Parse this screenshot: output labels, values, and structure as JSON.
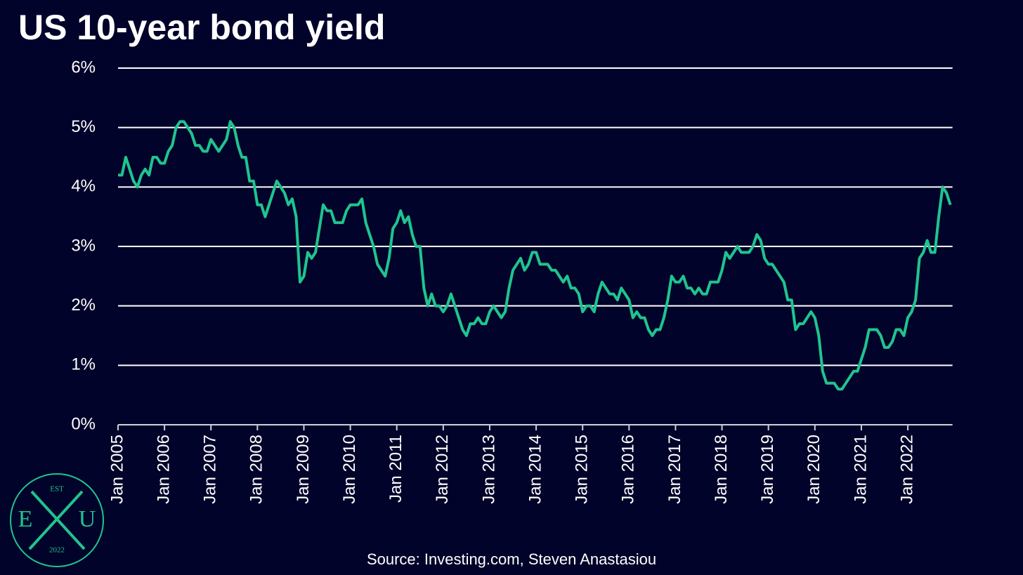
{
  "chart_data": {
    "type": "line",
    "title": "US 10-year bond yield",
    "source": "Source: Investing.com, Steven Anastasiou",
    "color": "#1fc48f",
    "x": [
      "Jan 2005",
      "Feb 2005",
      "Mar 2005",
      "Apr 2005",
      "May 2005",
      "Jun 2005",
      "Jul 2005",
      "Aug 2005",
      "Sep 2005",
      "Oct 2005",
      "Nov 2005",
      "Dec 2005",
      "Jan 2006",
      "Feb 2006",
      "Mar 2006",
      "Apr 2006",
      "May 2006",
      "Jun 2006",
      "Jul 2006",
      "Aug 2006",
      "Sep 2006",
      "Oct 2006",
      "Nov 2006",
      "Dec 2006",
      "Jan 2007",
      "Feb 2007",
      "Mar 2007",
      "Apr 2007",
      "May 2007",
      "Jun 2007",
      "Jul 2007",
      "Aug 2007",
      "Sep 2007",
      "Oct 2007",
      "Nov 2007",
      "Dec 2007",
      "Jan 2008",
      "Feb 2008",
      "Mar 2008",
      "Apr 2008",
      "May 2008",
      "Jun 2008",
      "Jul 2008",
      "Aug 2008",
      "Sep 2008",
      "Oct 2008",
      "Nov 2008",
      "Dec 2008",
      "Jan 2009",
      "Feb 2009",
      "Mar 2009",
      "Apr 2009",
      "May 2009",
      "Jun 2009",
      "Jul 2009",
      "Aug 2009",
      "Sep 2009",
      "Oct 2009",
      "Nov 2009",
      "Dec 2009",
      "Jan 2010",
      "Feb 2010",
      "Mar 2010",
      "Apr 2010",
      "May 2010",
      "Jun 2010",
      "Jul 2010",
      "Aug 2010",
      "Sep 2010",
      "Oct 2010",
      "Nov 2010",
      "Dec 2010",
      "Jan 2011",
      "Feb 2011",
      "Mar 2011",
      "Apr 2011",
      "May 2011",
      "Jun 2011",
      "Jul 2011",
      "Aug 2011",
      "Sep 2011",
      "Oct 2011",
      "Nov 2011",
      "Dec 2011",
      "Jan 2012",
      "Feb 2012",
      "Mar 2012",
      "Apr 2012",
      "May 2012",
      "Jun 2012",
      "Jul 2012",
      "Aug 2012",
      "Sep 2012",
      "Oct 2012",
      "Nov 2012",
      "Dec 2012",
      "Jan 2013",
      "Feb 2013",
      "Mar 2013",
      "Apr 2013",
      "May 2013",
      "Jun 2013",
      "Jul 2013",
      "Aug 2013",
      "Sep 2013",
      "Oct 2013",
      "Nov 2013",
      "Dec 2013",
      "Jan 2014",
      "Feb 2014",
      "Mar 2014",
      "Apr 2014",
      "May 2014",
      "Jun 2014",
      "Jul 2014",
      "Aug 2014",
      "Sep 2014",
      "Oct 2014",
      "Nov 2014",
      "Dec 2014",
      "Jan 2015",
      "Feb 2015",
      "Mar 2015",
      "Apr 2015",
      "May 2015",
      "Jun 2015",
      "Jul 2015",
      "Aug 2015",
      "Sep 2015",
      "Oct 2015",
      "Nov 2015",
      "Dec 2015",
      "Jan 2016",
      "Feb 2016",
      "Mar 2016",
      "Apr 2016",
      "May 2016",
      "Jun 2016",
      "Jul 2016",
      "Aug 2016",
      "Sep 2016",
      "Oct 2016",
      "Nov 2016",
      "Dec 2016",
      "Jan 2017",
      "Feb 2017",
      "Mar 2017",
      "Apr 2017",
      "May 2017",
      "Jun 2017",
      "Jul 2017",
      "Aug 2017",
      "Sep 2017",
      "Oct 2017",
      "Nov 2017",
      "Dec 2017",
      "Jan 2018",
      "Feb 2018",
      "Mar 2018",
      "Apr 2018",
      "May 2018",
      "Jun 2018",
      "Jul 2018",
      "Aug 2018",
      "Sep 2018",
      "Oct 2018",
      "Nov 2018",
      "Dec 2018",
      "Jan 2019",
      "Feb 2019",
      "Mar 2019",
      "Apr 2019",
      "May 2019",
      "Jun 2019",
      "Jul 2019",
      "Aug 2019",
      "Sep 2019",
      "Oct 2019",
      "Nov 2019",
      "Dec 2019",
      "Jan 2020",
      "Feb 2020",
      "Mar 2020",
      "Apr 2020",
      "May 2020",
      "Jun 2020",
      "Jul 2020",
      "Aug 2020",
      "Sep 2020",
      "Oct 2020",
      "Nov 2020",
      "Dec 2020",
      "Jan 2021",
      "Feb 2021",
      "Mar 2021",
      "Apr 2021",
      "May 2021",
      "Jun 2021",
      "Jul 2021",
      "Aug 2021",
      "Sep 2021",
      "Oct 2021",
      "Nov 2021",
      "Dec 2021",
      "Jan 2022",
      "Feb 2022",
      "Mar 2022",
      "Apr 2022",
      "May 2022",
      "Jun 2022",
      "Jul 2022",
      "Aug 2022",
      "Sep 2022",
      "Oct 2022",
      "Nov 2022",
      "Dec 2022"
    ],
    "values": [
      4.2,
      4.2,
      4.5,
      4.3,
      4.1,
      4.0,
      4.2,
      4.3,
      4.2,
      4.5,
      4.5,
      4.4,
      4.4,
      4.6,
      4.7,
      5.0,
      5.1,
      5.1,
      5.0,
      4.9,
      4.7,
      4.7,
      4.6,
      4.6,
      4.8,
      4.7,
      4.6,
      4.7,
      4.8,
      5.1,
      5.0,
      4.7,
      4.5,
      4.5,
      4.1,
      4.1,
      3.7,
      3.7,
      3.5,
      3.7,
      3.9,
      4.1,
      4.0,
      3.9,
      3.7,
      3.8,
      3.5,
      2.4,
      2.5,
      2.9,
      2.8,
      2.9,
      3.3,
      3.7,
      3.6,
      3.6,
      3.4,
      3.4,
      3.4,
      3.6,
      3.7,
      3.7,
      3.7,
      3.8,
      3.4,
      3.2,
      3.0,
      2.7,
      2.6,
      2.5,
      2.8,
      3.3,
      3.4,
      3.6,
      3.4,
      3.5,
      3.2,
      3.0,
      3.0,
      2.3,
      2.0,
      2.2,
      2.0,
      2.0,
      1.9,
      2.0,
      2.2,
      2.0,
      1.8,
      1.6,
      1.5,
      1.7,
      1.7,
      1.8,
      1.7,
      1.7,
      1.9,
      2.0,
      1.9,
      1.8,
      1.9,
      2.3,
      2.6,
      2.7,
      2.8,
      2.6,
      2.7,
      2.9,
      2.9,
      2.7,
      2.7,
      2.7,
      2.6,
      2.6,
      2.5,
      2.4,
      2.5,
      2.3,
      2.3,
      2.2,
      1.9,
      2.0,
      2.0,
      1.9,
      2.2,
      2.4,
      2.3,
      2.2,
      2.2,
      2.1,
      2.3,
      2.2,
      2.1,
      1.8,
      1.9,
      1.8,
      1.8,
      1.6,
      1.5,
      1.6,
      1.6,
      1.8,
      2.1,
      2.5,
      2.4,
      2.4,
      2.5,
      2.3,
      2.3,
      2.2,
      2.3,
      2.2,
      2.2,
      2.4,
      2.4,
      2.4,
      2.6,
      2.9,
      2.8,
      2.9,
      3.0,
      2.9,
      2.9,
      2.9,
      3.0,
      3.2,
      3.1,
      2.8,
      2.7,
      2.7,
      2.6,
      2.5,
      2.4,
      2.1,
      2.1,
      1.6,
      1.7,
      1.7,
      1.8,
      1.9,
      1.8,
      1.5,
      0.9,
      0.7,
      0.7,
      0.7,
      0.6,
      0.6,
      0.7,
      0.8,
      0.9,
      0.9,
      1.1,
      1.3,
      1.6,
      1.6,
      1.6,
      1.5,
      1.3,
      1.3,
      1.4,
      1.6,
      1.6,
      1.5,
      1.8,
      1.9,
      2.1,
      2.8,
      2.9,
      3.1,
      2.9,
      2.9,
      3.5,
      4.0,
      3.9,
      3.7
    ],
    "ylim": [
      0,
      6
    ],
    "yticks": [
      {
        "value": 0,
        "label": "0%"
      },
      {
        "value": 1,
        "label": "1%"
      },
      {
        "value": 2,
        "label": "2%"
      },
      {
        "value": 3,
        "label": "3%"
      },
      {
        "value": 4,
        "label": "4%"
      },
      {
        "value": 5,
        "label": "5%"
      },
      {
        "value": 6,
        "label": "6%"
      }
    ],
    "grid": true,
    "logo": {
      "top": "EST",
      "left": "E",
      "right": "U",
      "bottom": "2022"
    }
  }
}
